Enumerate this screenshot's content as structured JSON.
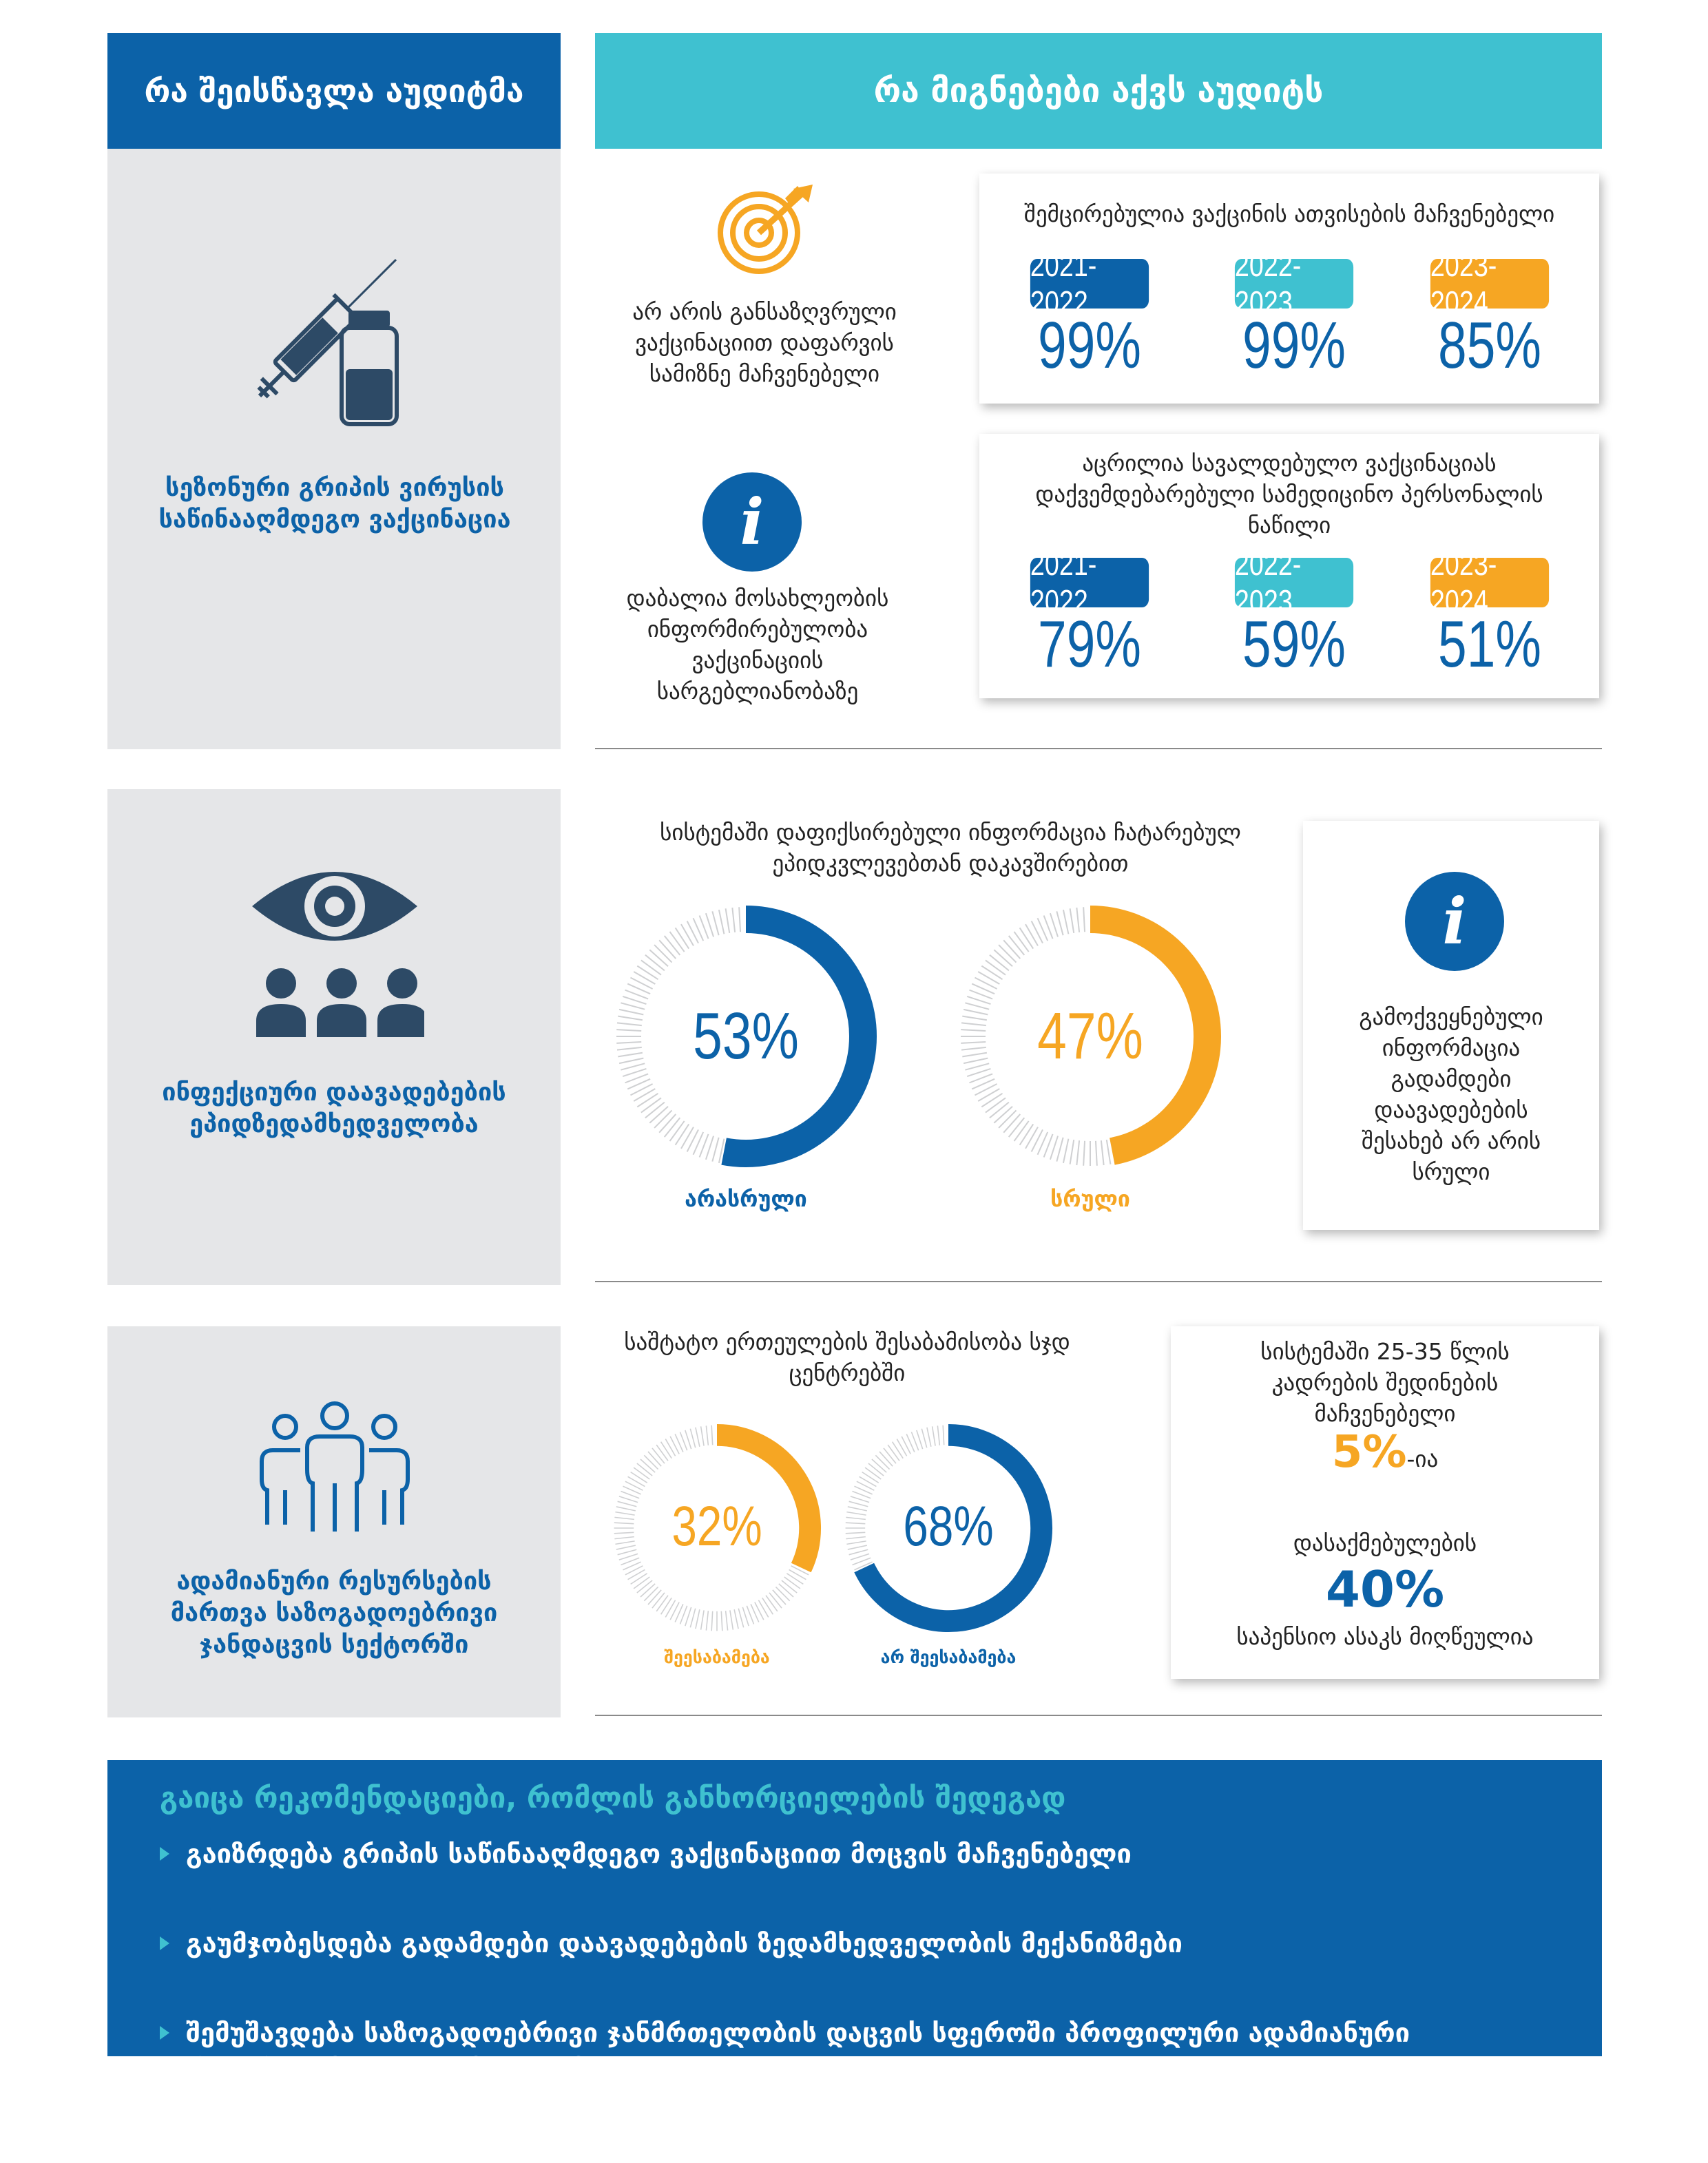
{
  "header": {
    "left_title": "რა შეისწავლა აუდიტმა",
    "right_title": "რა მიგნებები აქვს აუდიტს"
  },
  "colors": {
    "dark_blue": "#0c62a8",
    "teal": "#3fc1d0",
    "orange": "#f6a623",
    "gray_bg": "#e5e6e8"
  },
  "section1": {
    "topic": "სეზონური გრიპის ვირუსის საწინააღმდეგო ვაქცინაცია",
    "topic_icon": "syringe-vial-icon",
    "finding1": {
      "icon": "target-icon",
      "text": "არ არის განსაზღვრული ვაქცინაციით დაფარვის სამიზნე მაჩვენებელი"
    },
    "finding2": {
      "icon": "info-icon",
      "text": "დაბალია მოსახლეობის ინფორმირებულობა ვაქცინაციის სარგებლიანობაზე"
    },
    "card1": {
      "title": "შემცირებულია ვაქცინის ათვისების მაჩვენებელი",
      "years": [
        "2021-2022",
        "2022-2023",
        "2023-2024"
      ],
      "values": [
        "99%",
        "99%",
        "85%"
      ]
    },
    "card2": {
      "title": "აცრილია სავალდებულო ვაქცინაციას დაქვემდებარებული სამედიცინო პერსონალის ნაწილი",
      "years": [
        "2021-2022",
        "2022-2023",
        "2023-2024"
      ],
      "values": [
        "79%",
        "59%",
        "51%"
      ]
    }
  },
  "section2": {
    "topic": "ინფექციური დაავადებების ეპიდზედამხედველობა",
    "topic_icon": "eye-people-icon",
    "chart_title": "სისტემაში დაფიქსირებული ინფორმაცია ჩატარებულ ეპიდკვლევებთან დაკავშირებით",
    "donut1": {
      "value": 53,
      "label_text": "53%",
      "caption": "არასრული"
    },
    "donut2": {
      "value": 47,
      "label_text": "47%",
      "caption": "სრული"
    },
    "info_card": {
      "icon": "info-icon",
      "text": "გამოქვეყნებული ინფორმაცია გადამდები დაავადებების შესახებ არ არის სრული"
    }
  },
  "section3": {
    "topic": "ადამიანური რესურსების მართვა საზოგადოებრივი ჯანდაცვის სექტორში",
    "topic_icon": "group-people-icon",
    "chart_title": "საშტატო ერთეულების შესაბამისობა სჯდ ცენტრებში",
    "donut1": {
      "value": 32,
      "label_text": "32%",
      "caption": "შეესაბამება"
    },
    "donut2": {
      "value": 68,
      "label_text": "68%",
      "caption": "არ შეესაბამება"
    },
    "stat_card": {
      "line1": "სისტემაში 25-35 წლის კადრების შედინების მაჩვენებელი",
      "pct1": "5%",
      "suffix1": "-ია",
      "line2": "დასაქმებულების",
      "pct2": "40%",
      "line3": "საპენსიო ასაკს მიღწეულია"
    }
  },
  "recommendations": {
    "title": "გაიცა რეკომენდაციები, რომლის განხორციელების შედეგად",
    "items": [
      "გაიზრდება გრიპის საწინააღმდეგო ვაქცინაციით მოცვის მაჩვენებელი",
      "გაუმჯობესდება გადამდები დაავადებების ზედამხედველობის მექანიზმები",
      "შემუშავდება საზოგადოებრივი ჯანმრთელობის დაცვის სფეროში პროფილური ადამიანური რესურსის მოზიდვის მექანიზმი"
    ]
  }
}
